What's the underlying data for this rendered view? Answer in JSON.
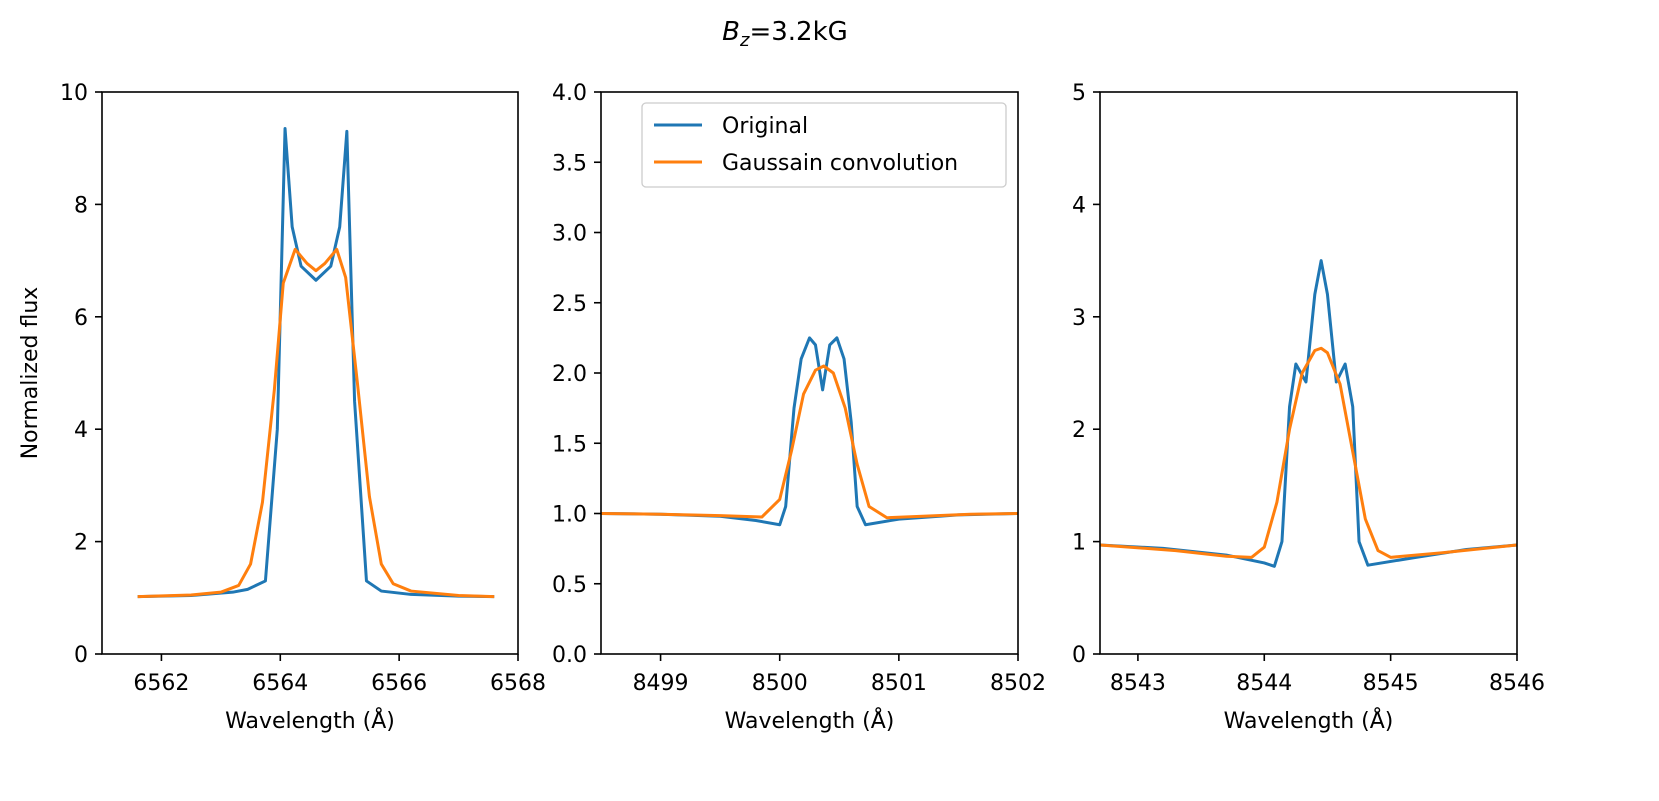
{
  "figure": {
    "title_main": "B",
    "title_sub": "z",
    "title_rest": "=3.2kG",
    "colors": {
      "original": "#1f77b4",
      "convolved": "#ff7f0e",
      "axes": "#000000"
    }
  },
  "chart_data": [
    {
      "type": "line",
      "xlabel": "Wavelength (Å)",
      "ylabel": "Normalized flux",
      "xlim": [
        6561,
        6568
      ],
      "ylim": [
        0,
        10
      ],
      "xticks": [
        6562,
        6564,
        6566,
        6568
      ],
      "xtick_labels": [
        "6562",
        "6564",
        "6566",
        "6568"
      ],
      "yticks": [
        0,
        2,
        4,
        6,
        8,
        10
      ],
      "ytick_labels": [
        "0",
        "2",
        "4",
        "6",
        "8",
        "10"
      ],
      "legend": null,
      "series": [
        {
          "name": "Original",
          "x": [
            6561.6,
            6562.5,
            6563.2,
            6563.45,
            6563.75,
            6563.95,
            6564.08,
            6564.2,
            6564.35,
            6564.6,
            6564.85,
            6565.0,
            6565.12,
            6565.25,
            6565.45,
            6565.7,
            6566.2,
            6567.0,
            6567.6
          ],
          "y": [
            1.02,
            1.04,
            1.1,
            1.15,
            1.3,
            4.0,
            9.35,
            7.6,
            6.9,
            6.65,
            6.9,
            7.6,
            9.3,
            4.5,
            1.3,
            1.12,
            1.06,
            1.03,
            1.02
          ]
        },
        {
          "name": "Gaussain convolution",
          "x": [
            6561.6,
            6562.5,
            6563.0,
            6563.3,
            6563.5,
            6563.7,
            6563.9,
            6564.05,
            6564.25,
            6564.45,
            6564.6,
            6564.75,
            6564.95,
            6565.1,
            6565.3,
            6565.5,
            6565.7,
            6565.9,
            6566.2,
            6567.0,
            6567.6
          ],
          "y": [
            1.02,
            1.05,
            1.1,
            1.22,
            1.6,
            2.7,
            4.7,
            6.6,
            7.2,
            6.95,
            6.82,
            6.95,
            7.2,
            6.7,
            4.8,
            2.8,
            1.6,
            1.25,
            1.12,
            1.04,
            1.02
          ]
        }
      ]
    },
    {
      "type": "line",
      "xlabel": "Wavelength (Å)",
      "ylabel": "",
      "xlim": [
        8498.5,
        8502
      ],
      "ylim": [
        0,
        4
      ],
      "xticks": [
        8499,
        8500,
        8501,
        8502
      ],
      "xtick_labels": [
        "8499",
        "8500",
        "8501",
        "8502"
      ],
      "yticks": [
        0,
        0.5,
        1,
        1.5,
        2,
        2.5,
        3,
        3.5,
        4
      ],
      "ytick_labels": [
        "0.0",
        "0.5",
        "1.0",
        "1.5",
        "2.0",
        "2.5",
        "3.0",
        "3.5",
        "4.0"
      ],
      "legend": {
        "placement": "top-right",
        "entries": [
          "Original",
          "Gaussain convolution"
        ]
      },
      "series": [
        {
          "name": "Original",
          "x": [
            8498.5,
            8499.0,
            8499.5,
            8499.8,
            8500.0,
            8500.05,
            8500.12,
            8500.18,
            8500.25,
            8500.3,
            8500.36,
            8500.42,
            8500.48,
            8500.54,
            8500.6,
            8500.65,
            8500.72,
            8501.0,
            8501.5,
            8502.0
          ],
          "y": [
            1.0,
            0.995,
            0.98,
            0.95,
            0.92,
            1.05,
            1.75,
            2.1,
            2.25,
            2.2,
            1.88,
            2.2,
            2.25,
            2.1,
            1.65,
            1.05,
            0.92,
            0.96,
            0.99,
            1.0
          ]
        },
        {
          "name": "Gaussain convolution",
          "x": [
            8498.5,
            8499.0,
            8499.5,
            8499.85,
            8500.0,
            8500.1,
            8500.2,
            8500.3,
            8500.37,
            8500.45,
            8500.55,
            8500.65,
            8500.75,
            8500.9,
            8501.2,
            8501.6,
            8502.0
          ],
          "y": [
            1.0,
            0.995,
            0.985,
            0.975,
            1.1,
            1.45,
            1.85,
            2.02,
            2.05,
            2.0,
            1.75,
            1.35,
            1.05,
            0.97,
            0.98,
            0.995,
            1.0
          ]
        }
      ]
    },
    {
      "type": "line",
      "xlabel": "Wavelength (Å)",
      "ylabel": "",
      "xlim": [
        8542.7,
        8546
      ],
      "ylim": [
        0,
        5
      ],
      "xticks": [
        8543,
        8544,
        8545,
        8546
      ],
      "xtick_labels": [
        "8543",
        "8544",
        "8545",
        "8546"
      ],
      "yticks": [
        0,
        1,
        2,
        3,
        4,
        5
      ],
      "ytick_labels": [
        "0",
        "1",
        "2",
        "3",
        "4",
        "5"
      ],
      "legend": null,
      "series": [
        {
          "name": "Original",
          "x": [
            8542.7,
            8543.2,
            8543.7,
            8544.0,
            8544.08,
            8544.14,
            8544.2,
            8544.25,
            8544.33,
            8544.4,
            8544.45,
            8544.5,
            8544.57,
            8544.64,
            8544.7,
            8544.75,
            8544.82,
            8545.2,
            8545.6,
            8546.0
          ],
          "y": [
            0.97,
            0.94,
            0.88,
            0.81,
            0.78,
            1.0,
            2.2,
            2.58,
            2.42,
            3.2,
            3.5,
            3.2,
            2.42,
            2.58,
            2.2,
            1.0,
            0.79,
            0.86,
            0.93,
            0.97
          ]
        },
        {
          "name": "Gaussain convolution",
          "x": [
            8542.7,
            8543.3,
            8543.7,
            8543.9,
            8544.0,
            8544.1,
            8544.2,
            8544.3,
            8544.4,
            8544.45,
            8544.5,
            8544.6,
            8544.7,
            8544.8,
            8544.9,
            8545.0,
            8545.4,
            8546.0
          ],
          "y": [
            0.97,
            0.92,
            0.87,
            0.86,
            0.95,
            1.35,
            2.0,
            2.5,
            2.7,
            2.72,
            2.68,
            2.4,
            1.8,
            1.2,
            0.92,
            0.86,
            0.9,
            0.97
          ]
        }
      ]
    }
  ]
}
